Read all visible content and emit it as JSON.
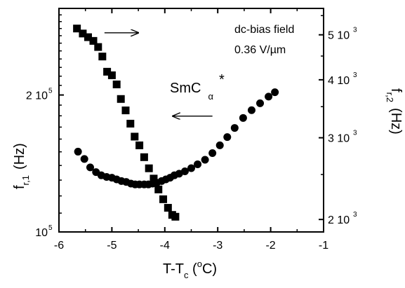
{
  "chart_data": {
    "type": "scatter",
    "x_label": {
      "main": "T-T",
      "sub": "c",
      "paren_open": " (",
      "sup": "o",
      "unit": "C)"
    },
    "y_left_label": {
      "main": "f",
      "sub": "r,1",
      "unit": "(Hz)"
    },
    "y_right_label": {
      "main": "f",
      "sub": "r,2",
      "unit": "(Hz)"
    },
    "x_ticks": [
      "-6",
      "-5",
      "-4",
      "-3",
      "-2",
      "-1"
    ],
    "x_range": [
      -6,
      -1
    ],
    "y_left": {
      "scale": "log",
      "range": [
        100000,
        310000
      ],
      "ticks": [
        {
          "value": 100000,
          "base": "10",
          "exp": "5"
        },
        {
          "value": 200000,
          "base": "2 10",
          "exp": "5"
        }
      ]
    },
    "y_right": {
      "scale": "log",
      "range": [
        1880,
        5700
      ],
      "ticks": [
        {
          "value": 2000,
          "base": "2 10",
          "exp": "3"
        },
        {
          "value": 3000,
          "base": "3 10",
          "exp": "3"
        },
        {
          "value": 4000,
          "base": "4 10",
          "exp": "3"
        },
        {
          "value": 5000,
          "base": "5 10",
          "exp": "3"
        }
      ]
    },
    "annotation": {
      "line1": "dc-bias field",
      "line2": "0.36 V/µm"
    },
    "series_label": {
      "main": "SmC",
      "sub": "α",
      "sup": "*"
    },
    "series": [
      {
        "marker": "square",
        "axis": "left",
        "x": [
          -5.66,
          -5.55,
          -5.45,
          -5.35,
          -5.26,
          -5.18,
          -5.09,
          -5.0,
          -4.91,
          -4.83,
          -4.74,
          -4.65,
          -4.57,
          -4.48,
          -4.39,
          -4.3,
          -4.21,
          -4.12,
          -4.03,
          -3.94,
          -3.86,
          -3.8
        ],
        "y": [
          280000,
          273000,
          268000,
          263000,
          255000,
          243000,
          225000,
          221000,
          211000,
          196000,
          185000,
          173000,
          162000,
          155000,
          146000,
          138000,
          131000,
          124000,
          118000,
          113000,
          109000,
          108000
        ]
      },
      {
        "marker": "circle",
        "axis": "right",
        "x": [
          -5.64,
          -5.52,
          -5.41,
          -5.3,
          -5.2,
          -5.1,
          -5.0,
          -4.91,
          -4.82,
          -4.73,
          -4.64,
          -4.56,
          -4.48,
          -4.39,
          -4.31,
          -4.23,
          -4.15,
          -4.06,
          -3.98,
          -3.9,
          -3.82,
          -3.73,
          -3.62,
          -3.5,
          -3.38,
          -3.24,
          -3.1,
          -2.96,
          -2.82,
          -2.68,
          -2.52,
          -2.36,
          -2.2,
          -2.04,
          -1.92
        ],
        "y": [
          2800,
          2700,
          2590,
          2530,
          2490,
          2470,
          2460,
          2440,
          2420,
          2410,
          2390,
          2380,
          2380,
          2380,
          2380,
          2390,
          2400,
          2420,
          2440,
          2460,
          2490,
          2510,
          2540,
          2580,
          2630,
          2690,
          2780,
          2890,
          3010,
          3150,
          3310,
          3440,
          3560,
          3680,
          3760
        ]
      }
    ],
    "arrows": [
      {
        "from": [
          -5.14,
          5050
        ],
        "to": [
          -4.5,
          5050
        ],
        "axis": "right"
      },
      {
        "from": [
          -3.1,
          3340
        ],
        "to": [
          -3.85,
          3340
        ],
        "axis": "right"
      }
    ],
    "colors": {
      "markers": "#000000",
      "axes": "#000000"
    }
  }
}
